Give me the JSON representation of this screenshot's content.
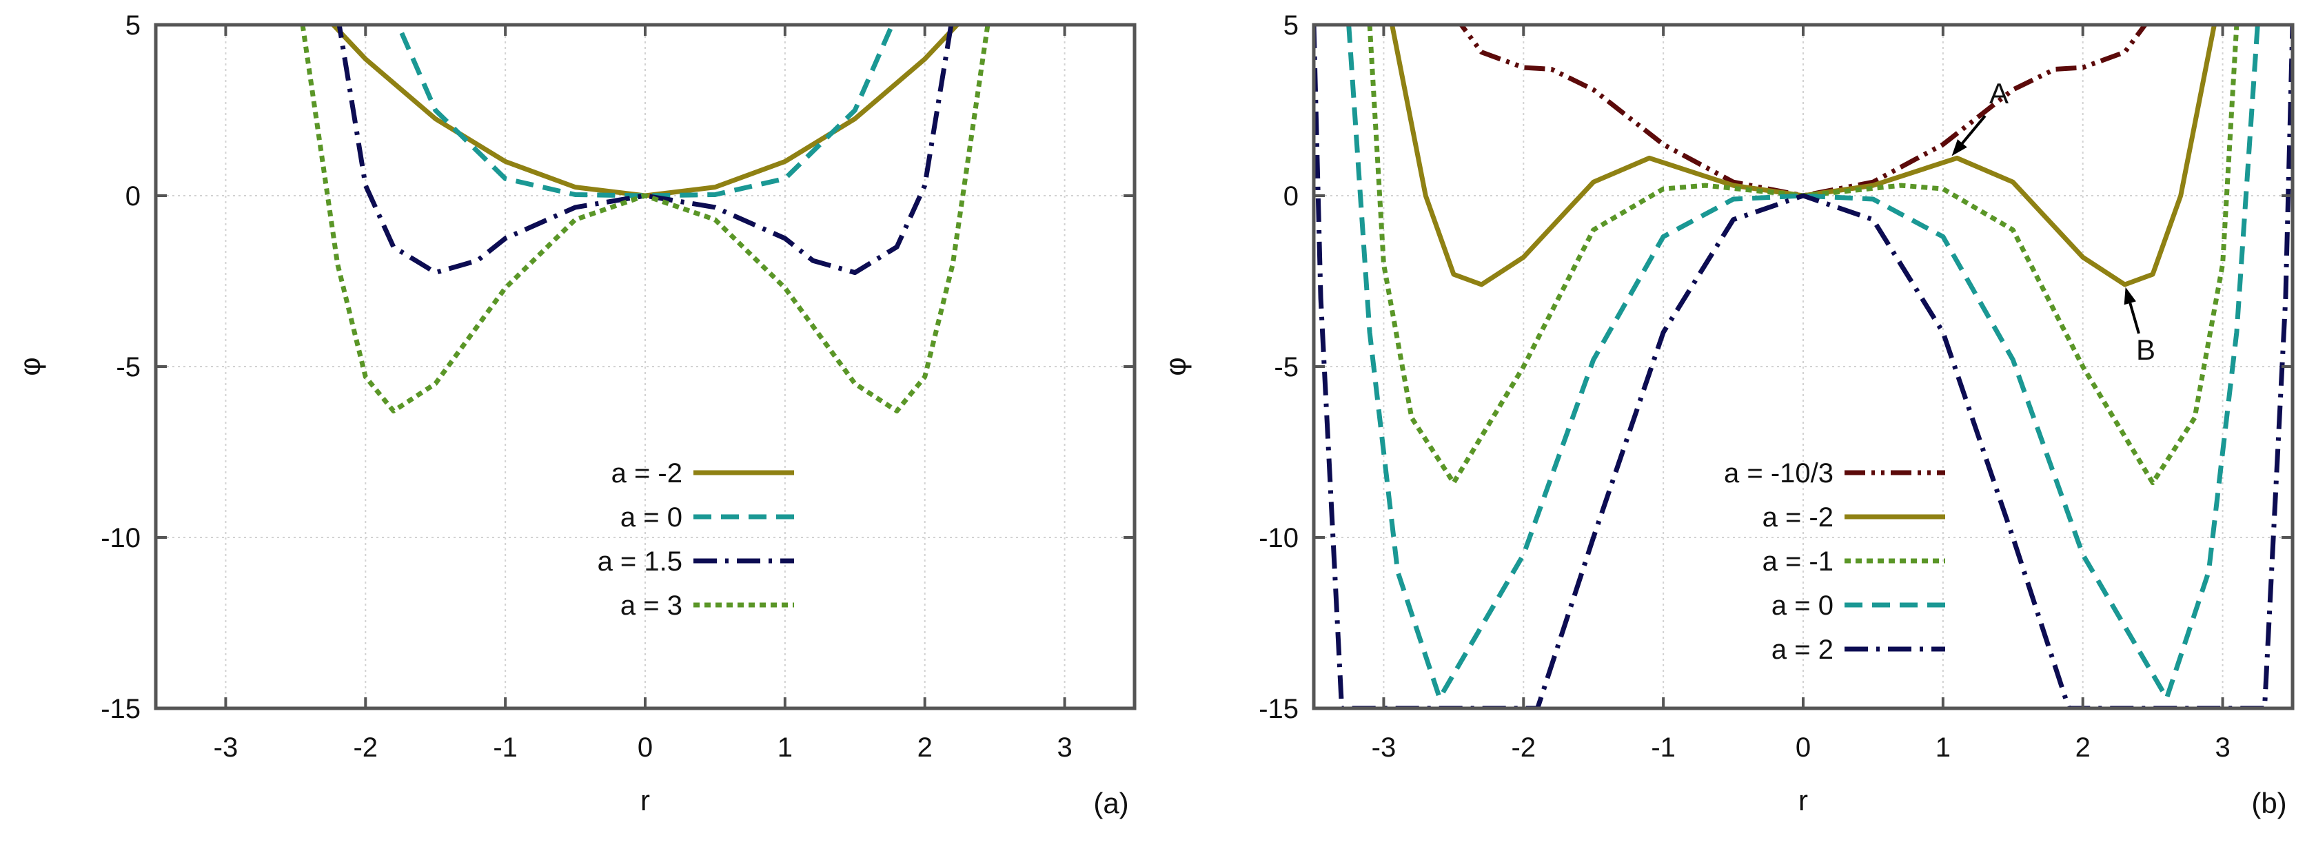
{
  "chart_data": [
    {
      "type": "line",
      "panel_label": "(a)",
      "xlabel": "r",
      "ylabel": "φ",
      "xlim": [
        -3.5,
        3.5
      ],
      "ylim": [
        -15,
        5
      ],
      "xticks": [
        -3,
        -2,
        -1,
        0,
        1,
        2,
        3
      ],
      "yticks": [
        -15,
        -10,
        -5,
        0,
        5
      ],
      "grid": true,
      "legend_position": "center-right",
      "series": [
        {
          "name": "a = -2",
          "a": -2,
          "color": "#8f8113",
          "dash": "solid",
          "x": [
            -2.3,
            -2,
            -1.5,
            -1,
            -0.5,
            0,
            0.5,
            1,
            1.5,
            2,
            2.3
          ],
          "y": [
            5.3,
            4.0,
            2.25,
            1.0,
            0.25,
            0,
            0.25,
            1.0,
            2.25,
            4.0,
            5.3
          ]
        },
        {
          "name": "a = 0",
          "a": 0,
          "color": "#1a9894",
          "dash": "dash",
          "x": [
            -1.82,
            -1.5,
            -1.0,
            -0.5,
            0,
            0.5,
            1.0,
            1.5,
            1.82
          ],
          "y": [
            5.5,
            2.5,
            0.5,
            0.03,
            0,
            0.03,
            0.5,
            2.5,
            5.5
          ]
        },
        {
          "name": "a = 1.5",
          "a": 1.5,
          "color": "#0c0c52",
          "dash": "dashdot",
          "x": [
            -2.2,
            -2.0,
            -1.8,
            -1.5,
            -1.2,
            -1.0,
            -0.5,
            0,
            0.5,
            1.0,
            1.2,
            1.5,
            1.8,
            2.0,
            2.2
          ],
          "y": [
            5.3,
            0.3,
            -1.5,
            -2.25,
            -1.9,
            -1.25,
            -0.34,
            0,
            -0.34,
            -1.25,
            -1.9,
            -2.25,
            -1.5,
            0.3,
            5.3
          ]
        },
        {
          "name": "a = 3",
          "a": 3,
          "color": "#5a9627",
          "dash": "dot",
          "x": [
            -2.45,
            -2.2,
            -2.0,
            -1.8,
            -1.5,
            -1.0,
            -0.5,
            0,
            0.5,
            1.0,
            1.5,
            1.8,
            2.0,
            2.2,
            2.45
          ],
          "y": [
            5.0,
            -2.0,
            -5.3,
            -6.3,
            -5.5,
            -2.7,
            -0.7,
            0,
            -0.7,
            -2.7,
            -5.5,
            -6.3,
            -5.3,
            -2.0,
            5.0
          ]
        }
      ]
    },
    {
      "type": "line",
      "panel_label": "(b)",
      "xlabel": "r",
      "ylabel": "φ",
      "xlim": [
        -3.5,
        3.5
      ],
      "ylim": [
        -15,
        5
      ],
      "xticks": [
        -3,
        -2,
        -1,
        0,
        1,
        2,
        3
      ],
      "yticks": [
        -15,
        -10,
        -5,
        0,
        5
      ],
      "grid": true,
      "legend_position": "bottom-center",
      "series": [
        {
          "name": "a = -10/3",
          "a": -3.3333,
          "color": "#5c0a0a",
          "dash": "dashdotdot",
          "x": [
            -2.5,
            -2.3,
            -2.0,
            -1.8,
            -1.5,
            -1.0,
            -0.5,
            0,
            0.5,
            1.0,
            1.5,
            1.8,
            2.0,
            2.3,
            2.5
          ],
          "y": [
            5.3,
            4.2,
            3.75,
            3.7,
            3.1,
            1.5,
            0.4,
            0,
            0.4,
            1.5,
            3.1,
            3.7,
            3.75,
            4.2,
            5.3
          ]
        },
        {
          "name": "a = -2",
          "a": -2,
          "color": "#8f8113",
          "dash": "solid",
          "x": [
            -2.95,
            -2.7,
            -2.5,
            -2.3,
            -2.0,
            -1.5,
            -1.1,
            -0.5,
            0,
            0.5,
            1.1,
            1.5,
            2.0,
            2.3,
            2.5,
            2.7,
            2.95
          ],
          "y": [
            5.2,
            0.0,
            -2.3,
            -2.6,
            -1.8,
            0.4,
            1.1,
            0.3,
            0,
            0.3,
            1.1,
            0.4,
            -1.8,
            -2.6,
            -2.3,
            0.0,
            5.2
          ]
        },
        {
          "name": "a = -1",
          "a": -1,
          "color": "#5a9627",
          "dash": "dot",
          "x": [
            -3.1,
            -3.0,
            -2.8,
            -2.5,
            -2.0,
            -1.5,
            -1.0,
            -0.7,
            0,
            0.7,
            1.0,
            1.5,
            2.0,
            2.5,
            2.8,
            3.0,
            3.1
          ],
          "y": [
            5.0,
            -2.0,
            -6.5,
            -8.4,
            -5.0,
            -1.0,
            0.2,
            0.3,
            0,
            0.3,
            0.2,
            -1.0,
            -5.0,
            -8.4,
            -6.5,
            -2.0,
            5.0
          ]
        },
        {
          "name": "a = 0",
          "a": 0,
          "color": "#1a9894",
          "dash": "dash",
          "x": [
            -3.25,
            -3.1,
            -2.9,
            -2.6,
            -2.0,
            -1.5,
            -1.0,
            -0.5,
            0,
            0.5,
            1.0,
            1.5,
            2.0,
            2.6,
            2.9,
            3.1,
            3.25
          ],
          "y": [
            5.0,
            -4.0,
            -11.0,
            -14.7,
            -10.5,
            -4.8,
            -1.2,
            -0.1,
            0,
            -0.1,
            -1.2,
            -4.8,
            -10.5,
            -14.7,
            -11.0,
            -4.0,
            5.0
          ]
        },
        {
          "name": "a = 2",
          "a": 2,
          "color": "#0c0c52",
          "dash": "dashdot",
          "x": [
            -3.5,
            -3.45,
            -3.3,
            -1.9,
            -1.5,
            -1.0,
            -0.5,
            0,
            0.5,
            1.0,
            1.5,
            1.9,
            3.3,
            3.45,
            3.5
          ],
          "y": [
            5.0,
            -3.0,
            -15.0,
            -15.0,
            -10.0,
            -4.0,
            -0.7,
            0,
            -0.7,
            -4.0,
            -10.0,
            -15.0,
            -15.0,
            -3.0,
            5.0
          ]
        }
      ],
      "annotations": [
        {
          "text": "A",
          "point": [
            1.05,
            1.1
          ],
          "label_at": [
            1.4,
            2.7
          ]
        },
        {
          "text": "B",
          "point": [
            2.3,
            -2.6
          ],
          "label_at": [
            2.45,
            -4.8
          ]
        }
      ]
    }
  ]
}
